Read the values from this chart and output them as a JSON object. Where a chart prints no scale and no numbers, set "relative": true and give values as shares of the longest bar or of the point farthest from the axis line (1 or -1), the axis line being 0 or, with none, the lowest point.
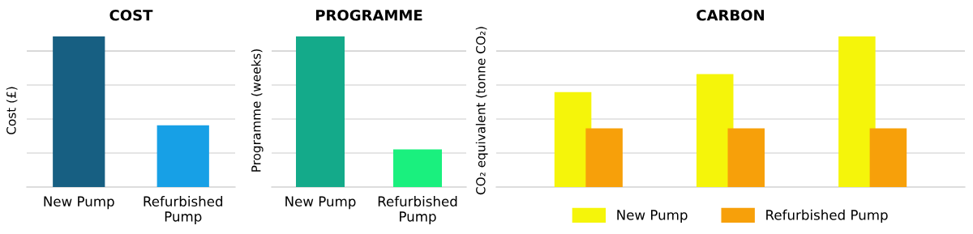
{
  "chart_data": [
    {
      "type": "bar",
      "title": "COST",
      "ylabel": "Cost (£)",
      "relative": true,
      "grid": "y",
      "categories": [
        "New Pump",
        "Refurbished Pump"
      ],
      "values": [
        1,
        0.41
      ],
      "colors": [
        "#175f82",
        "#17a0e6"
      ]
    },
    {
      "type": "bar",
      "title": "PROGRAMME",
      "ylabel": "Programme (weeks)",
      "relative": true,
      "grid": "y",
      "categories": [
        "New Pump",
        "Refurbished Pump"
      ],
      "values": [
        1,
        0.25
      ],
      "colors": [
        "#14aa8a",
        "#1af07e"
      ]
    },
    {
      "type": "bar",
      "title": "CARBON",
      "ylabel": "CO₂ equivalent (tonne CO₂)",
      "relative": true,
      "grid": "y",
      "legend": "bottom",
      "categories": [
        null,
        null,
        null
      ],
      "series": [
        {
          "name": "New Pump",
          "color": "#f5f50a",
          "values": [
            0.63,
            0.75,
            1
          ]
        },
        {
          "name": "Refurbished Pump",
          "color": "#f7a00a",
          "values": [
            0.39,
            0.39,
            0.39
          ]
        }
      ]
    }
  ]
}
